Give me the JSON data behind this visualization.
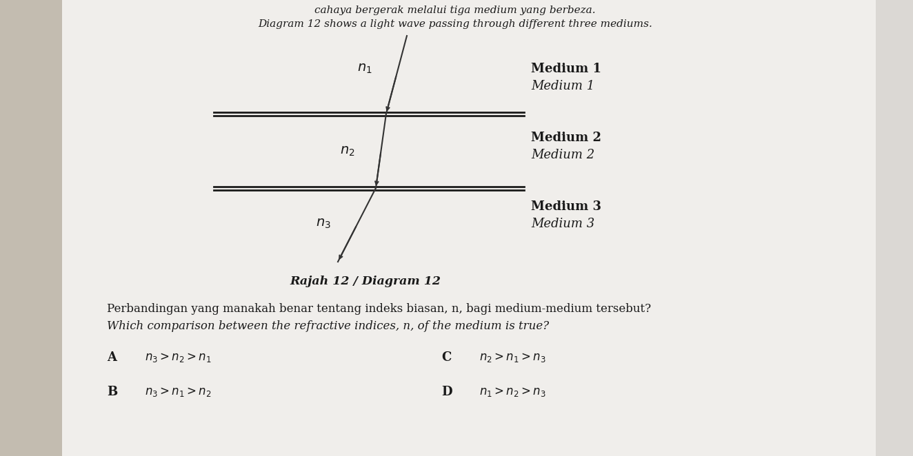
{
  "background_color": "#e8e6e3",
  "paper_color": "#f5f4f2",
  "title_text1": "cahaya bergerak melalui tiga medium yang berbeza.",
  "title_text2": "Diagram 12 shows a light wave passing through different three mediums.",
  "caption": "Rajah 12 / Diagram 12",
  "question_text1": "Perbandingan yang manakah benar tentang indeks biasan, n, bagi medium-medium tersebut?",
  "question_text2": "Which comparison between the refractive indices, n, of the medium is true?",
  "options_left": [
    {
      "label": "A",
      "text": "$n_3 > n_2 > n_1$"
    },
    {
      "label": "B",
      "text": "$n_3 > n_1 > n_2$"
    }
  ],
  "options_right": [
    {
      "label": "C",
      "text": "$n_2 > n_1 > n_3$"
    },
    {
      "label": "D",
      "text": "$n_1 > n_2 > n_3$"
    }
  ],
  "line_color": "#1a1a1a",
  "text_color": "#1a1a1a",
  "ray_color": "#333333",
  "boundary_lw": 3.0,
  "ray_lw": 1.5
}
